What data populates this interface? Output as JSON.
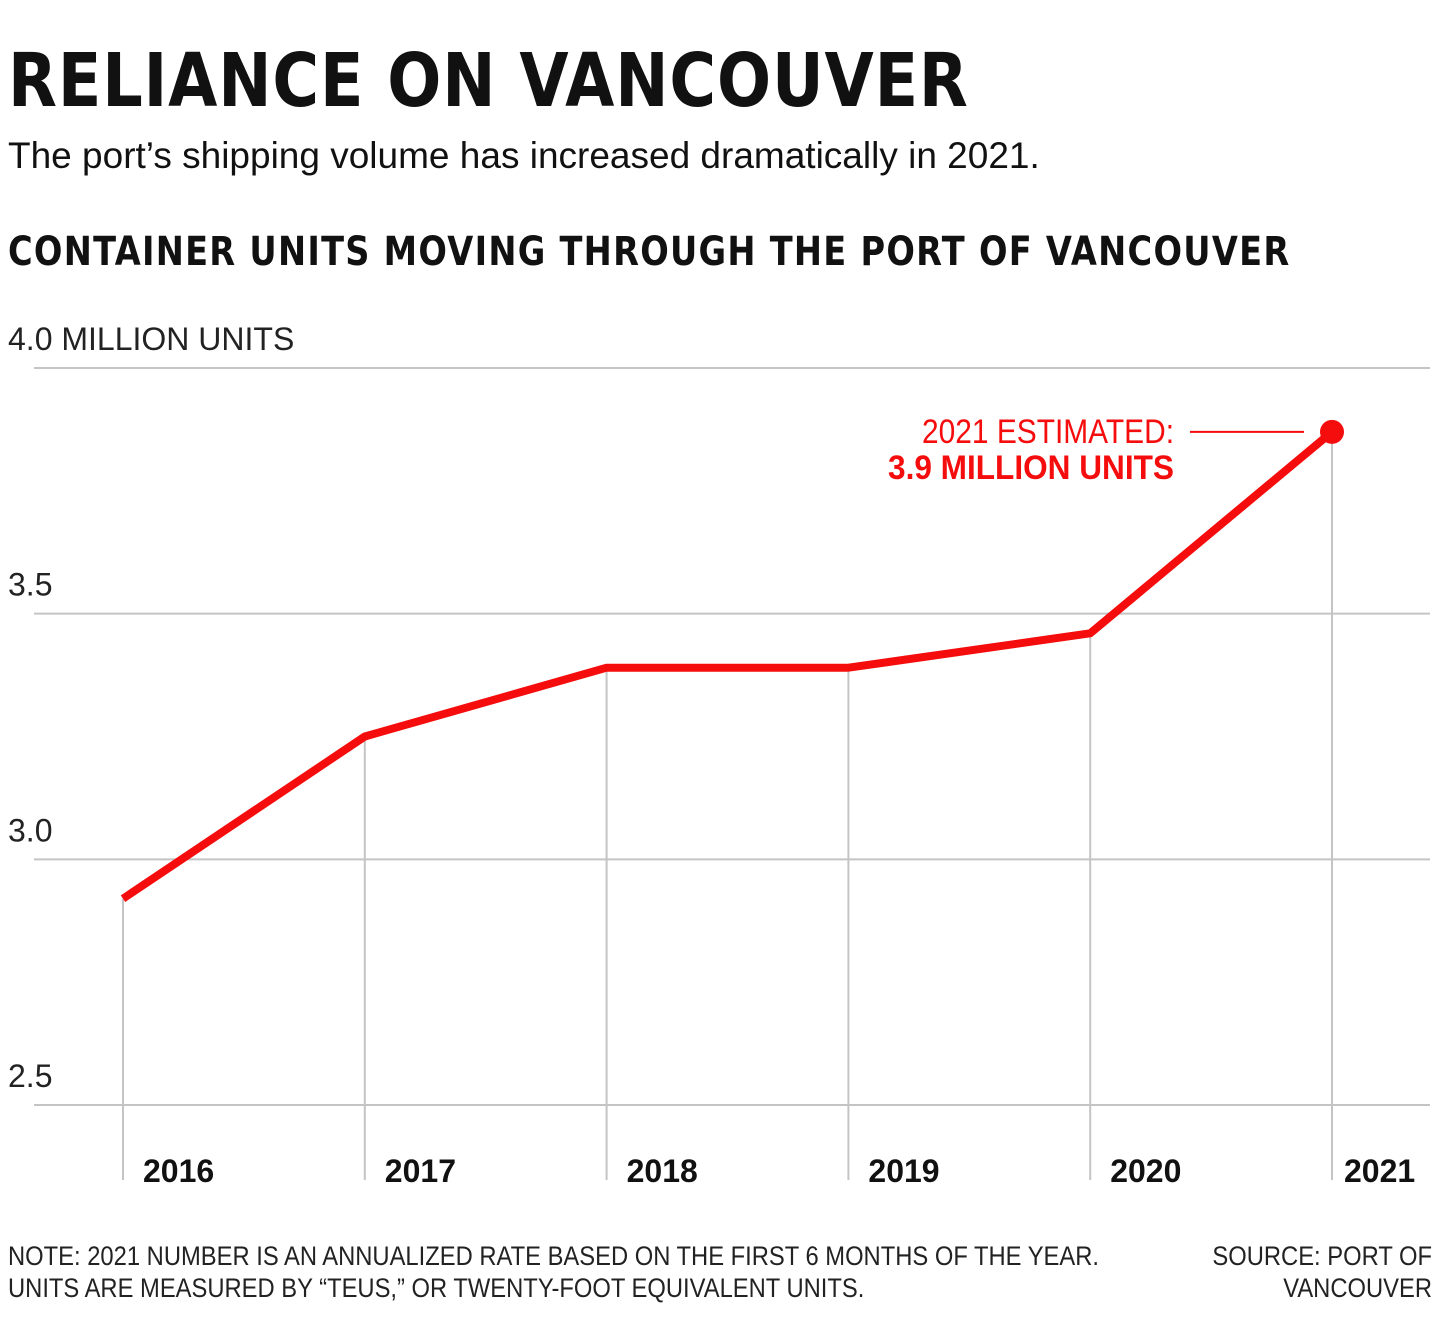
{
  "header": {
    "title": "RELIANCE ON VANCOUVER",
    "subtitle": "The port’s shipping volume has increased dramatically in 2021.",
    "chart_heading": "CONTAINER UNITS MOVING THROUGH THE PORT OF VANCOUVER"
  },
  "colors": {
    "line": "#f50c0c",
    "grid": "#c4c4c4",
    "text": "#111111"
  },
  "chart_data": {
    "type": "line",
    "title": "CONTAINER UNITS MOVING THROUGH THE PORT OF VANCOUVER",
    "xlabel": "",
    "ylabel": "4.0 MILLION UNITS",
    "x": [
      "2016",
      "2017",
      "2018",
      "2019",
      "2020",
      "2021"
    ],
    "series": [
      {
        "values": [
          2.92,
          3.25,
          3.39,
          3.39,
          3.46,
          3.87
        ]
      }
    ],
    "ylim": [
      2.5,
      4.0
    ],
    "y_ticks": [
      {
        "value": 4.0,
        "label": "4.0 MILLION UNITS"
      },
      {
        "value": 3.5,
        "label": "3.5"
      },
      {
        "value": 3.0,
        "label": "3.0"
      },
      {
        "value": 2.5,
        "label": "2.5"
      }
    ],
    "grid": true,
    "annotation": {
      "x": "2021",
      "value": 3.87,
      "line1": "2021 ESTIMATED:",
      "line2": "3.9 MILLION UNITS"
    }
  },
  "footer": {
    "note_line1": "NOTE: 2021 NUMBER IS AN ANNUALIZED RATE BASED ON THE FIRST 6 MONTHS OF THE YEAR.",
    "note_line2": "UNITS ARE MEASURED BY “TEUS,” OR TWENTY-FOOT EQUIVALENT UNITS.",
    "source_line1": "SOURCE: PORT OF",
    "source_line2": "VANCOUVER"
  }
}
